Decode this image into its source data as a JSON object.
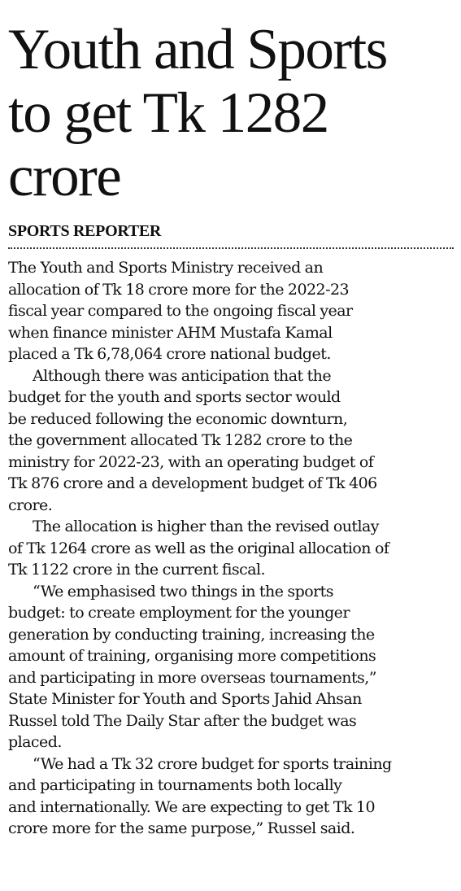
{
  "headline": {
    "lines": [
      "Youth and Sports",
      "to get Tk 1282",
      "crore"
    ]
  },
  "byline": "SPORTS REPORTER",
  "paragraphs": [
    {
      "lines": [
        "The Youth and Sports Ministry received an",
        "allocation of Tk 18 crore more for the 2022-23",
        "fiscal year compared to the ongoing fiscal year",
        "when finance minister AHM Mustafa Kamal",
        "placed a Tk 6,78,064 crore national budget."
      ]
    },
    {
      "lines": [
        "Although there was anticipation that the",
        "budget for the youth and sports sector would",
        "be reduced following the economic downturn,",
        "the government allocated Tk 1282 crore to the",
        "ministry for 2022-23, with an operating budget of",
        "Tk 876 crore and a development budget of Tk 406",
        "crore."
      ]
    },
    {
      "lines": [
        "The allocation is higher than the revised outlay",
        "of Tk 1264 crore as well as the original allocation of",
        "Tk 1122 crore in the current fiscal."
      ]
    },
    {
      "lines": [
        "“We emphasised two things in the sports",
        "budget: to create employment for the younger",
        "generation by conducting training, increasing the",
        "amount of training, organising more competitions",
        "and participating in more overseas tournaments,”",
        "State Minister for Youth and Sports Jahid Ahsan",
        "Russel told The Daily Star after the budget was",
        "placed."
      ]
    },
    {
      "lines": [
        "“We had a Tk 32 crore budget for sports training",
        "and participating in tournaments both locally",
        "and internationally. We are expecting to get Tk 10",
        "crore more for the same purpose,” Russel said."
      ]
    }
  ]
}
